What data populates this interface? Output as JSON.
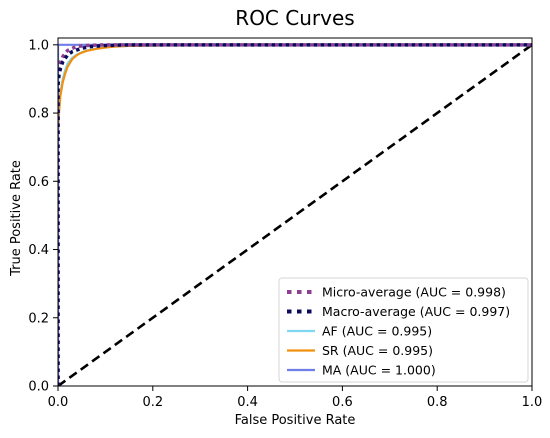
{
  "chart_data": {
    "type": "line",
    "title": "ROC Curves",
    "xlabel": "False Positive Rate",
    "ylabel": "True Positive Rate",
    "xlim": [
      0.0,
      1.0
    ],
    "ylim": [
      0.0,
      1.02
    ],
    "xticks": [
      "0.0",
      "0.2",
      "0.4",
      "0.6",
      "0.8",
      "1.0"
    ],
    "yticks": [
      "0.0",
      "0.2",
      "0.4",
      "0.6",
      "0.8",
      "1.0"
    ],
    "xtick_values": [
      0.0,
      0.2,
      0.4,
      0.6,
      0.8,
      1.0
    ],
    "ytick_values": [
      0.0,
      0.2,
      0.4,
      0.6,
      0.8,
      1.0
    ],
    "grid": false,
    "legend_position": "bottom-right",
    "series": [
      {
        "name": "Micro-average (AUC = 0.998)",
        "color": "#8e3f91",
        "style": "dotted",
        "x": [
          0.0,
          0.0,
          0.002,
          0.005,
          0.01,
          0.015,
          0.02,
          0.03,
          0.04,
          0.06,
          0.1,
          0.2,
          1.0
        ],
        "y": [
          0.0,
          0.9,
          0.93,
          0.95,
          0.965,
          0.975,
          0.983,
          0.99,
          0.995,
          0.998,
          1.0,
          1.0,
          1.0
        ]
      },
      {
        "name": "Macro-average (AUC = 0.997)",
        "color": "#0b0b5e",
        "style": "dotted",
        "x": [
          0.0,
          0.0,
          0.002,
          0.005,
          0.01,
          0.02,
          0.03,
          0.05,
          0.07,
          0.1,
          0.15,
          0.3,
          1.0
        ],
        "y": [
          0.0,
          0.88,
          0.91,
          0.93,
          0.95,
          0.97,
          0.98,
          0.99,
          0.995,
          0.998,
          1.0,
          1.0,
          1.0
        ]
      },
      {
        "name": "AF (AUC = 0.995)",
        "color": "#7fd8f0",
        "style": "solid",
        "x": [
          0.0,
          0.0,
          0.002,
          0.005,
          0.01,
          0.015,
          0.02,
          0.03,
          0.04,
          0.05,
          0.06,
          0.08,
          0.1,
          0.12,
          0.15,
          0.2,
          0.3,
          0.5,
          1.0
        ],
        "y": [
          0.0,
          0.75,
          0.82,
          0.86,
          0.9,
          0.925,
          0.945,
          0.962,
          0.972,
          0.978,
          0.983,
          0.989,
          0.993,
          0.995,
          0.997,
          0.998,
          0.999,
          1.0,
          1.0
        ]
      },
      {
        "name": "SR (AUC = 0.995)",
        "color": "#f0900e",
        "style": "solid",
        "x": [
          0.0,
          0.0,
          0.002,
          0.005,
          0.01,
          0.015,
          0.02,
          0.03,
          0.04,
          0.05,
          0.06,
          0.08,
          0.1,
          0.12,
          0.15,
          0.2,
          0.3,
          0.5,
          1.0
        ],
        "y": [
          0.0,
          0.74,
          0.8,
          0.85,
          0.89,
          0.915,
          0.935,
          0.958,
          0.97,
          0.977,
          0.982,
          0.988,
          0.992,
          0.995,
          0.997,
          0.998,
          0.999,
          1.0,
          1.0
        ]
      },
      {
        "name": "MA (AUC = 1.000)",
        "color": "#6f7ee8",
        "style": "solid",
        "x": [
          0.0,
          0.0,
          1.0
        ],
        "y": [
          0.0,
          1.0,
          1.0
        ]
      }
    ],
    "reference_line": {
      "color": "#000000",
      "style": "dashed",
      "x": [
        0.0,
        1.0
      ],
      "y": [
        0.0,
        1.0
      ]
    }
  }
}
